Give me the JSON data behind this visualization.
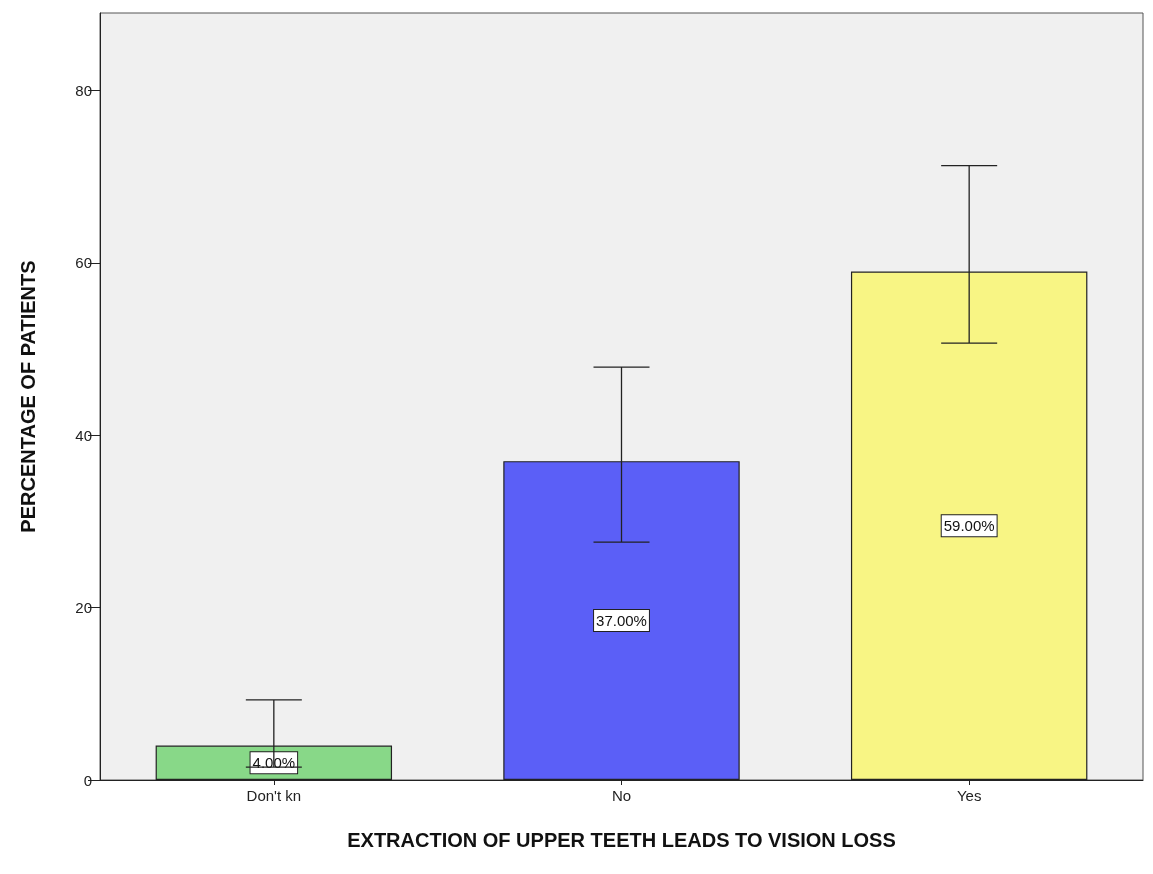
{
  "chart_data": {
    "type": "bar",
    "xlabel": "EXTRACTION OF UPPER TEETH LEADS TO VISION LOSS",
    "ylabel": "PERCENTAGE OF PATIENTS",
    "categories": [
      "Don't kn",
      "No",
      "Yes"
    ],
    "values": [
      4,
      37,
      59
    ],
    "colors": [
      "#88d888",
      "#5b5ff7",
      "#f8f584"
    ],
    "errors": [
      [
        1.5,
        9.3
      ],
      [
        27.6,
        47.9
      ],
      [
        50.7,
        71.3
      ]
    ],
    "value_labels": [
      "4.00%",
      "37.00%",
      "59.00%"
    ],
    "ylim": [
      0,
      89
    ],
    "yticks": [
      0,
      20,
      40,
      60,
      80
    ],
    "grid": false
  }
}
